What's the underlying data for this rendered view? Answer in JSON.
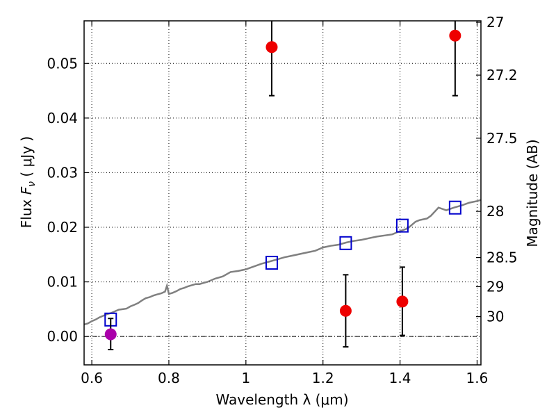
{
  "chart_data": {
    "type": "scatter",
    "xlabel": "Wavelength  λ (μm)",
    "ylabel": "Flux  F_ν  ( μJy )",
    "ylabel_parts": {
      "prefix": "Flux  ",
      "var": "F",
      "sub": "ν",
      "unit": "  ( μJy )"
    },
    "ylabel_right": "Magnitude (AB)",
    "xlim": [
      0.58,
      1.61
    ],
    "ylim": [
      -0.0052,
      0.0578
    ],
    "grid": true,
    "x_ticks": [
      0.6,
      0.8,
      1.0,
      1.2,
      1.4,
      1.6
    ],
    "x_tick_labels": [
      "0.6",
      "0.8",
      "1",
      "1.2",
      "1.4",
      "1.6"
    ],
    "y_ticks": [
      0.0,
      0.01,
      0.02,
      0.03,
      0.04,
      0.05
    ],
    "y_tick_labels": [
      "0.00",
      "0.01",
      "0.02",
      "0.03",
      "0.04",
      "0.05"
    ],
    "right_ticks": [
      {
        "label": "27",
        "flux": 0.05754
      },
      {
        "label": "27.2",
        "flux": 0.04786
      },
      {
        "label": "27.5",
        "flux": 0.03631
      },
      {
        "label": "28",
        "flux": 0.02291
      },
      {
        "label": "28.5",
        "flux": 0.01445
      },
      {
        "label": "29",
        "flux": 0.00912
      },
      {
        "label": "30",
        "flux": 0.00363
      }
    ],
    "zero_line": 0.0,
    "series": [
      {
        "kind": "spectrum",
        "color": "#808080",
        "x": [
          0.58,
          0.59,
          0.6,
          0.61,
          0.62,
          0.63,
          0.64,
          0.65,
          0.66,
          0.67,
          0.68,
          0.69,
          0.7,
          0.71,
          0.72,
          0.73,
          0.74,
          0.75,
          0.76,
          0.77,
          0.78,
          0.79,
          0.795,
          0.8,
          0.81,
          0.82,
          0.83,
          0.84,
          0.85,
          0.86,
          0.87,
          0.88,
          0.89,
          0.9,
          0.92,
          0.94,
          0.96,
          0.98,
          1.0,
          1.02,
          1.04,
          1.06,
          1.08,
          1.1,
          1.12,
          1.14,
          1.16,
          1.18,
          1.2,
          1.22,
          1.24,
          1.26,
          1.28,
          1.3,
          1.32,
          1.34,
          1.36,
          1.38,
          1.4,
          1.42,
          1.44,
          1.45,
          1.47,
          1.48,
          1.5,
          1.52,
          1.54,
          1.56,
          1.58,
          1.6,
          1.61
        ],
        "y": [
          0.0022,
          0.0024,
          0.0028,
          0.0031,
          0.0035,
          0.0038,
          0.0041,
          0.0043,
          0.0046,
          0.0049,
          0.005,
          0.0051,
          0.0055,
          0.0058,
          0.0061,
          0.0066,
          0.007,
          0.0072,
          0.0075,
          0.0077,
          0.0079,
          0.0082,
          0.0093,
          0.0078,
          0.008,
          0.0083,
          0.0087,
          0.0089,
          0.0092,
          0.0094,
          0.0096,
          0.0096,
          0.0098,
          0.01,
          0.0106,
          0.011,
          0.0118,
          0.012,
          0.0123,
          0.0128,
          0.0133,
          0.0137,
          0.0141,
          0.0145,
          0.0148,
          0.0151,
          0.0154,
          0.0157,
          0.0163,
          0.0166,
          0.0168,
          0.0172,
          0.0175,
          0.0177,
          0.018,
          0.0183,
          0.0185,
          0.0187,
          0.0193,
          0.0198,
          0.021,
          0.0213,
          0.0216,
          0.0221,
          0.0236,
          0.0231,
          0.0236,
          0.024,
          0.0245,
          0.0248,
          0.025
        ]
      },
      {
        "kind": "model_squares",
        "color": "#0000cc",
        "x": [
          0.649,
          1.067,
          1.259,
          1.406,
          1.543
        ],
        "y": [
          0.0031,
          0.0135,
          0.0171,
          0.0203,
          0.0236
        ]
      },
      {
        "kind": "detections",
        "color": "#ee0000",
        "x": [
          1.067,
          1.259,
          1.406,
          1.543
        ],
        "y": [
          0.053,
          0.0047,
          0.0064,
          0.0551
        ],
        "yerr_low": [
          0.0441,
          -0.0019,
          0.0002,
          0.0441
        ],
        "yerr_high": [
          0.062,
          0.0113,
          0.0127,
          0.062
        ]
      },
      {
        "kind": "drop_point",
        "color": "#aa00aa",
        "x": [
          0.649
        ],
        "y": [
          0.0004
        ],
        "yerr_low": [
          -0.0024
        ],
        "yerr_high": [
          0.0033
        ]
      }
    ]
  }
}
